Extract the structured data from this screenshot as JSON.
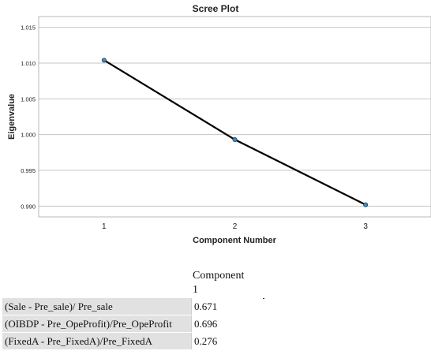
{
  "chart_data": {
    "type": "line",
    "title": "Scree Plot",
    "xlabel": "Component Number",
    "ylabel": "Eigenvalue",
    "x": [
      1,
      2,
      3
    ],
    "y": [
      1.0104,
      0.9993,
      0.9902
    ],
    "xticks": [
      "1",
      "2",
      "3"
    ],
    "yticks": [
      "0.990",
      "0.995",
      "1.000",
      "1.005",
      "1.010",
      "1.015"
    ],
    "ylim": [
      0.9885,
      1.0165
    ],
    "xlim": [
      0.5,
      3.5
    ],
    "grid": "horizontal",
    "line_color": "#000000",
    "marker_color": "#3d8cc4"
  },
  "table": {
    "header": "Component",
    "subheader": "1",
    "rows": [
      {
        "label": "(Sale - Pre_sale)/ Pre_sale",
        "value": "0.671"
      },
      {
        "label": "(OIBDP - Pre_OpeProfit)/Pre_OpeProfit",
        "value": "0.696"
      },
      {
        "label": "(FixedA - Pre_FixedA)/Pre_FixedA",
        "value": "0.276"
      }
    ]
  }
}
